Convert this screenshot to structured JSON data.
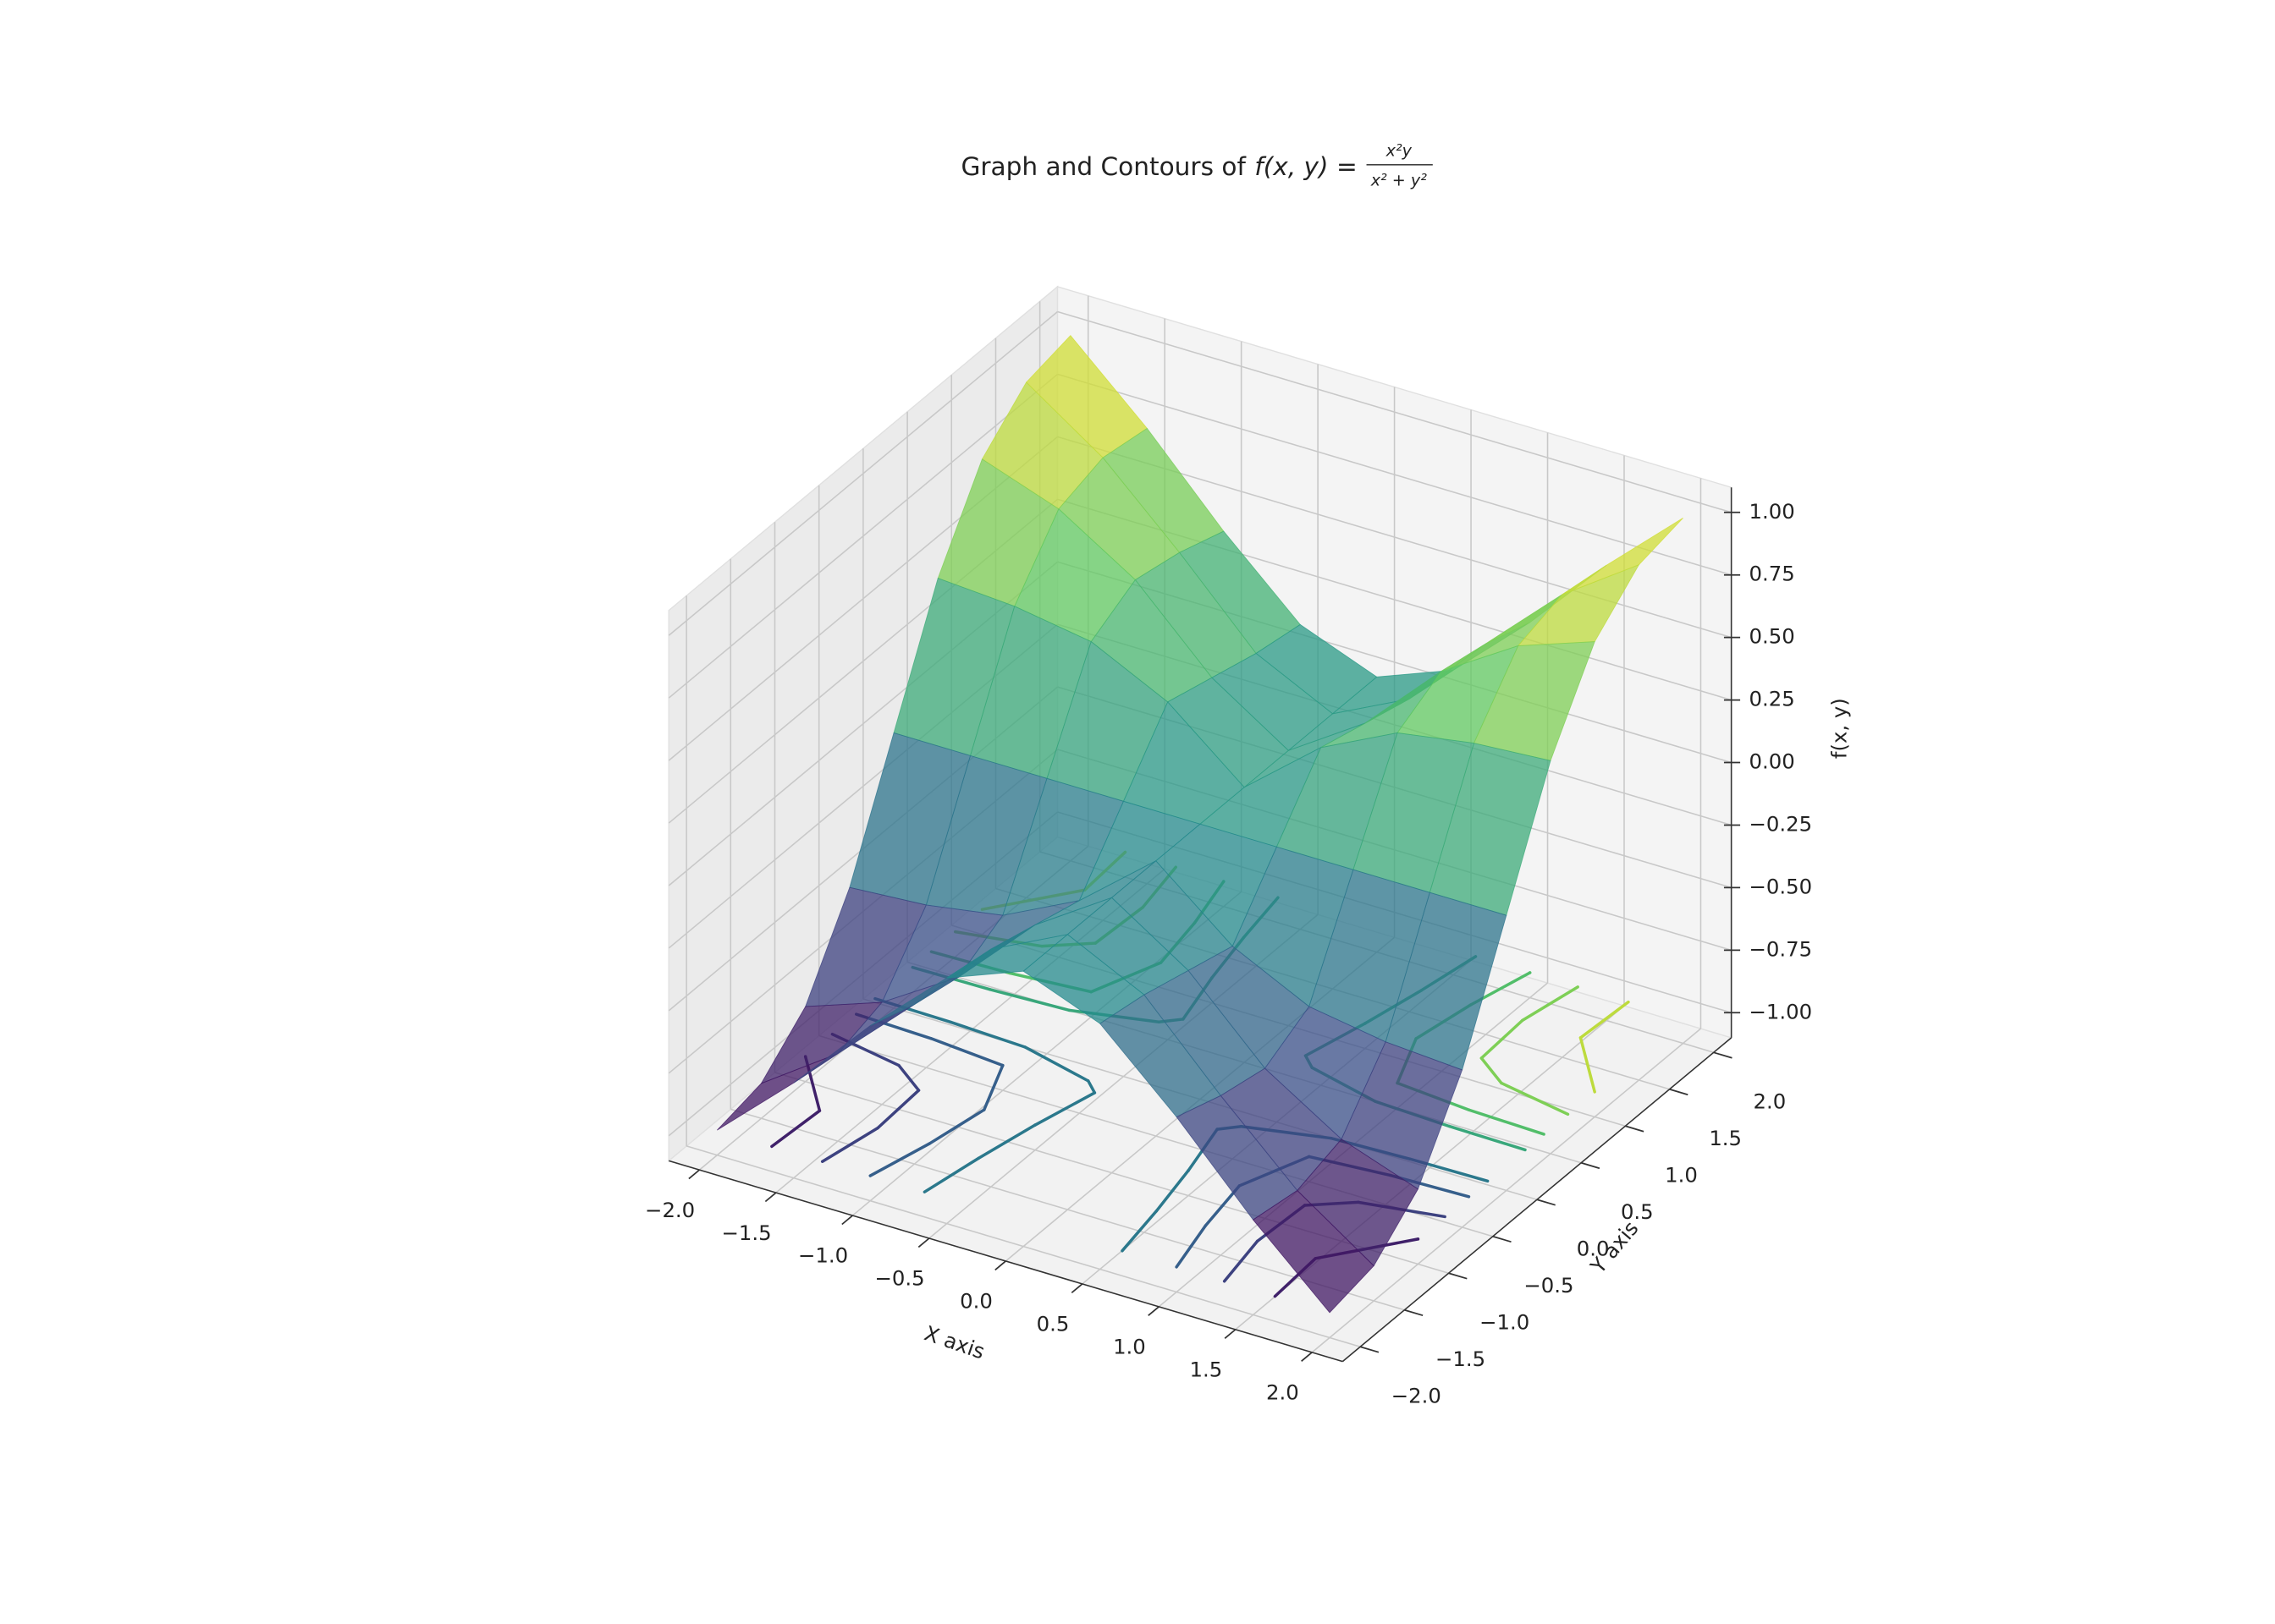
{
  "chart_data": {
    "type": "surface3d",
    "title": "Graph and Contours of",
    "title_function": "f(x, y) =",
    "title_numerator": "x²y",
    "title_denominator": "x² + y²",
    "xlabel": "X axis",
    "ylabel": "Y axis",
    "zlabel": "f(x, y)",
    "x": [
      -2,
      -1.5,
      -1,
      -0.5,
      0,
      0.5,
      1,
      1.5,
      2
    ],
    "y": [
      -2,
      -1.5,
      -1,
      -0.5,
      0,
      0.5,
      1,
      1.5,
      2
    ],
    "z": [
      [
        -1,
        -0.72,
        -0.4,
        -0.118,
        0,
        -0.118,
        -0.4,
        -0.72,
        -1
      ],
      [
        -0.96,
        -0.75,
        -0.462,
        -0.15,
        0,
        -0.15,
        -0.462,
        -0.75,
        -0.96
      ],
      [
        -0.8,
        -0.692,
        -0.5,
        -0.2,
        0,
        -0.2,
        -0.5,
        -0.692,
        -0.8
      ],
      [
        -0.471,
        -0.45,
        -0.4,
        -0.25,
        0,
        -0.25,
        -0.4,
        -0.45,
        -0.471
      ],
      [
        0,
        0,
        0,
        0,
        0,
        0,
        0,
        0,
        0
      ],
      [
        0.471,
        0.45,
        0.4,
        0.25,
        0,
        0.25,
        0.4,
        0.45,
        0.471
      ],
      [
        0.8,
        0.692,
        0.5,
        0.2,
        0,
        0.2,
        0.5,
        0.692,
        0.8
      ],
      [
        0.96,
        0.75,
        0.462,
        0.15,
        0,
        0.15,
        0.462,
        0.75,
        0.96
      ],
      [
        1,
        0.72,
        0.4,
        0.118,
        0,
        0.118,
        0.4,
        0.72,
        1
      ]
    ],
    "contour_levels": [
      -0.8,
      -0.6,
      -0.4,
      -0.2,
      0.2,
      0.4,
      0.6,
      0.8
    ],
    "contour_offset": -1,
    "colormap": [
      "#440154",
      "#3b528b",
      "#21918c",
      "#5ec962",
      "#fde725"
    ],
    "surface_alpha": 0.75,
    "xlim": [
      -2.2,
      2.2
    ],
    "ylim": [
      -2.2,
      2.2
    ],
    "zlim": [
      -1.1,
      1.1
    ],
    "xticks": [
      {
        "value": -2,
        "label": "−2.0"
      },
      {
        "value": -1.5,
        "label": "−1.5"
      },
      {
        "value": -1,
        "label": "−1.0"
      },
      {
        "value": -0.5,
        "label": "−0.5"
      },
      {
        "value": 0,
        "label": "0.0"
      },
      {
        "value": 0.5,
        "label": "0.5"
      },
      {
        "value": 1,
        "label": "1.0"
      },
      {
        "value": 1.5,
        "label": "1.5"
      },
      {
        "value": 2,
        "label": "2.0"
      }
    ],
    "yticks": [
      {
        "value": -2,
        "label": "−2.0"
      },
      {
        "value": -1.5,
        "label": "−1.5"
      },
      {
        "value": -1,
        "label": "−1.0"
      },
      {
        "value": -0.5,
        "label": "−0.5"
      },
      {
        "value": 0,
        "label": "0.0"
      },
      {
        "value": 0.5,
        "label": "0.5"
      },
      {
        "value": 1,
        "label": "1.0"
      },
      {
        "value": 1.5,
        "label": "1.5"
      },
      {
        "value": 2,
        "label": "2.0"
      }
    ],
    "zticks": [
      {
        "value": -1,
        "label": "−1.00"
      },
      {
        "value": -0.75,
        "label": "−0.75"
      },
      {
        "value": -0.5,
        "label": "−0.50"
      },
      {
        "value": -0.25,
        "label": "−0.25"
      },
      {
        "value": 0,
        "label": "0.00"
      },
      {
        "value": 0.25,
        "label": "0.25"
      },
      {
        "value": 0.5,
        "label": "0.50"
      },
      {
        "value": 0.75,
        "label": "0.75"
      },
      {
        "value": 1,
        "label": "1.00"
      }
    ],
    "grid": true
  }
}
